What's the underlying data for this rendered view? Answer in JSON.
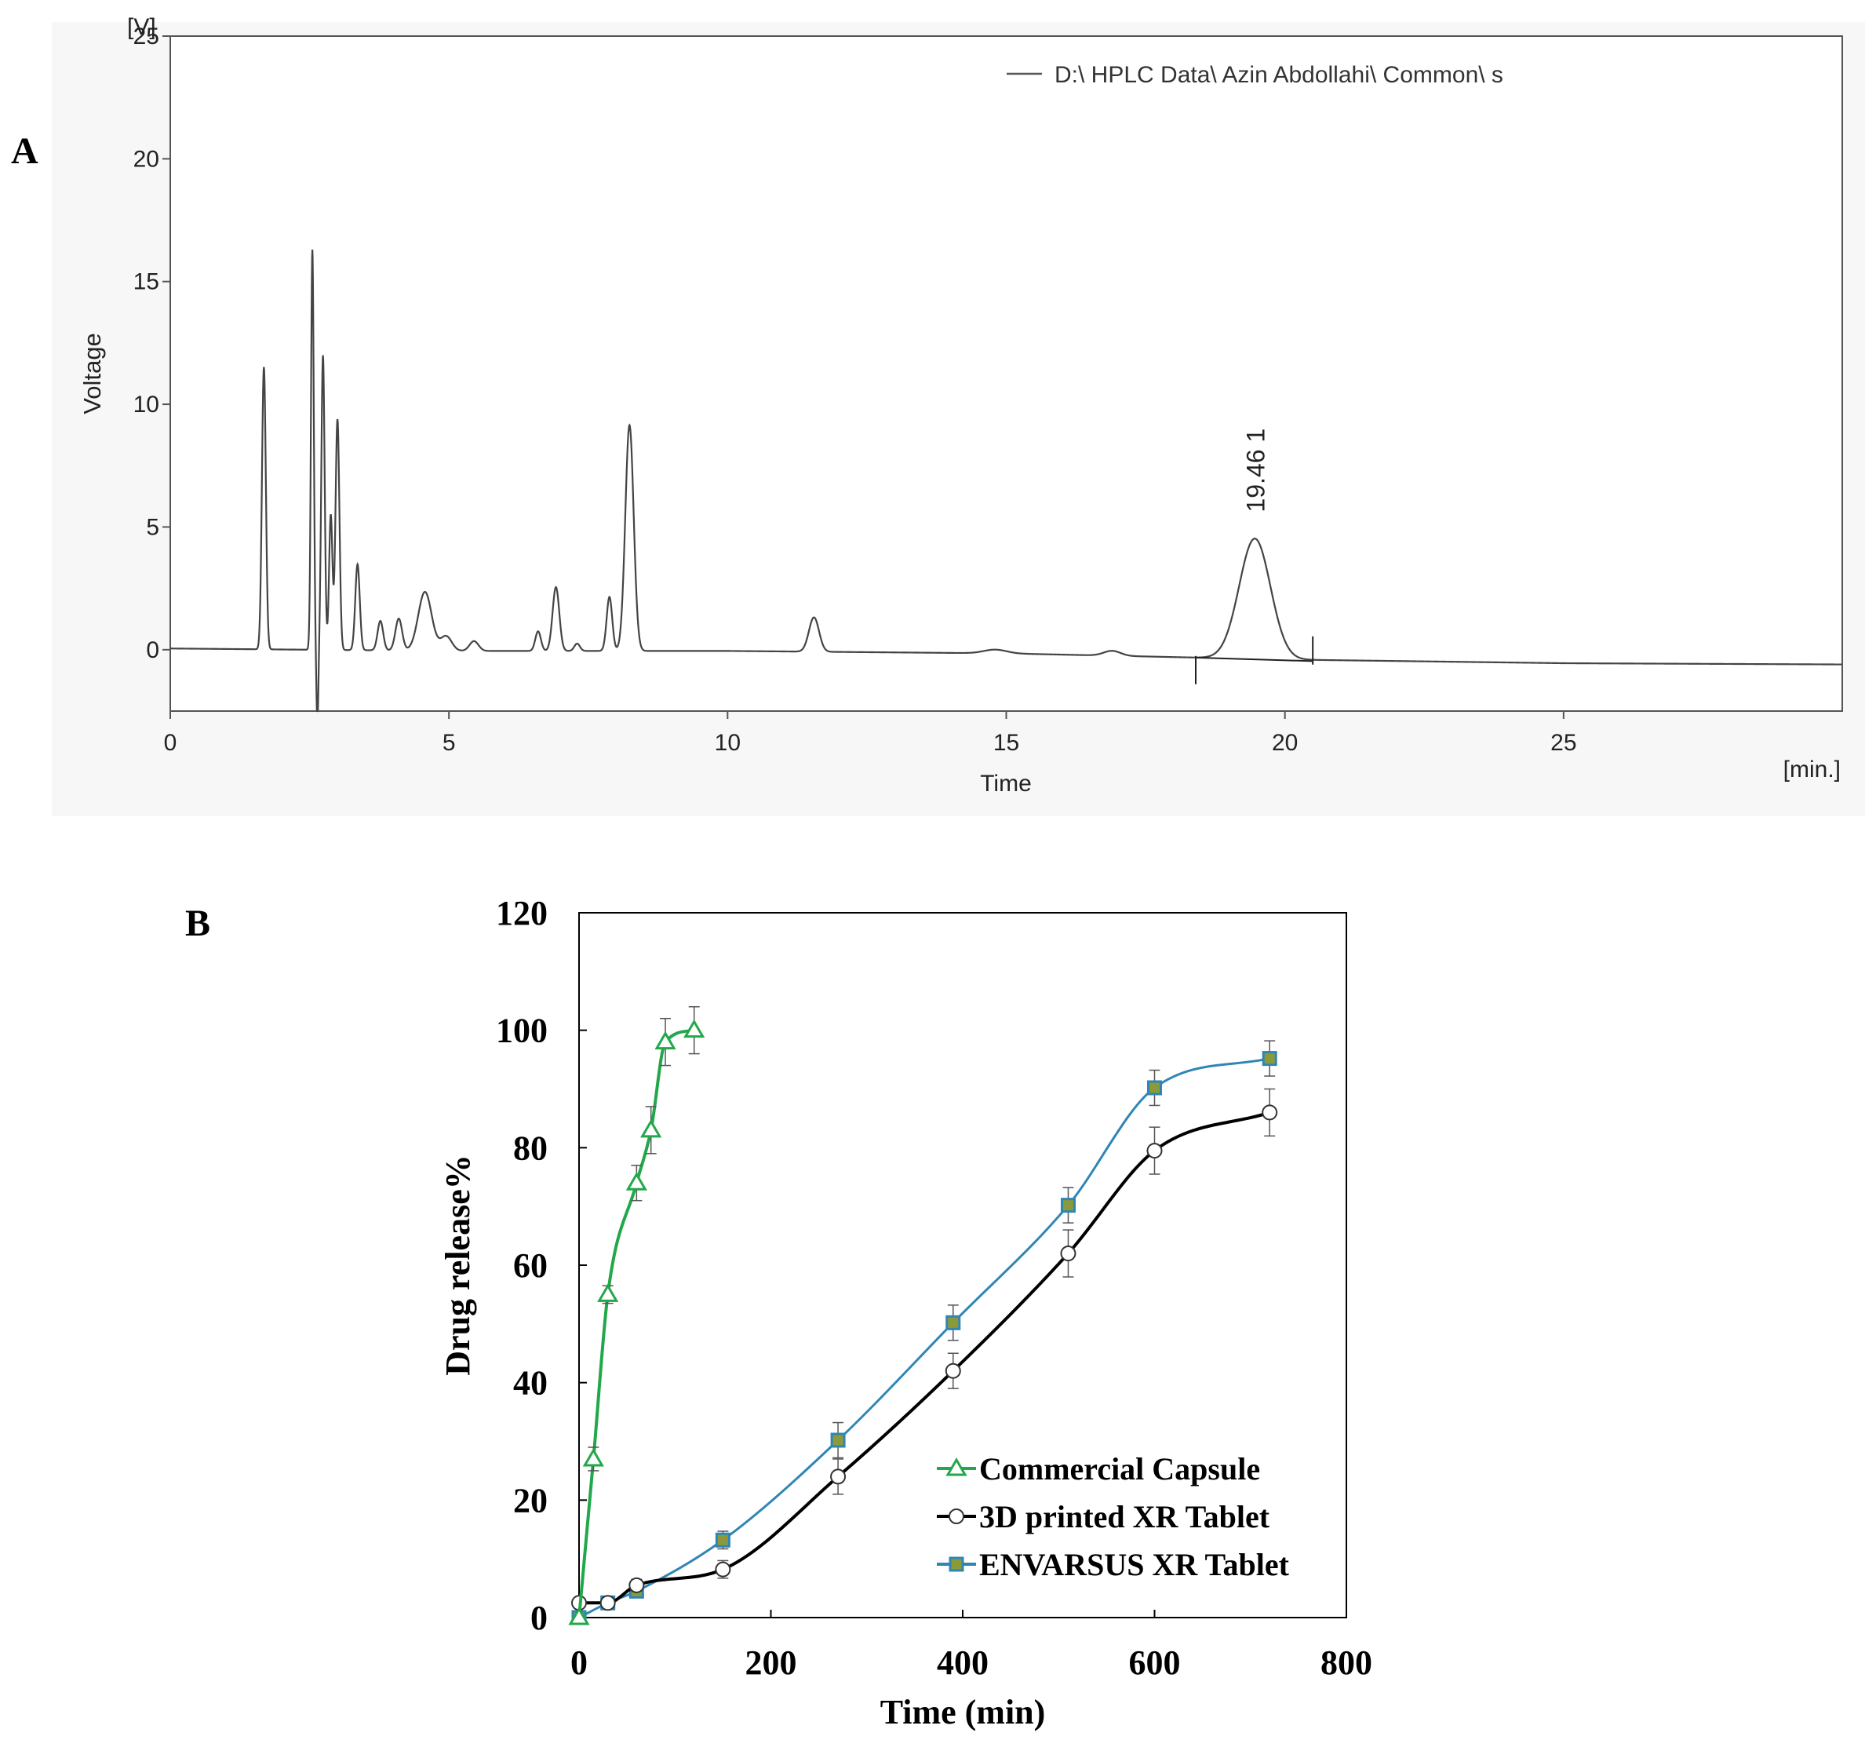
{
  "panel_a_letter": "A",
  "panel_b_letter": "B",
  "chart_data": [
    {
      "id": "A",
      "type": "line",
      "title": "",
      "xlabel": "Time",
      "x_unit": "[min.]",
      "ylabel": "Voltage",
      "y_unit": "[V]",
      "xlim": [
        0,
        30
      ],
      "ylim": [
        -2.5,
        25
      ],
      "xticks": [
        "0",
        "5",
        "10",
        "15",
        "20",
        "25"
      ],
      "xtick_values": [
        0,
        5,
        10,
        15,
        20,
        25
      ],
      "yticks": [
        "0",
        "5",
        "10",
        "15",
        "20",
        "25"
      ],
      "ytick_values": [
        0,
        5,
        10,
        15,
        20,
        25
      ],
      "grid": false,
      "legend": [
        "D:\\ HPLC Data\\ Azin Abdollahi\\ Common\\ s"
      ],
      "legend_position": "top-right",
      "peak_annotation": "19.46  1",
      "integration_markers": [
        18.4,
        20.5
      ],
      "series": [
        {
          "name": "D:\\ HPLC Data\\ Azin Abdollahi\\ Common\\ s",
          "baseline": [
            [
              0,
              0.05
            ],
            [
              5,
              -0.05
            ],
            [
              10,
              -0.05
            ],
            [
              15,
              -0.15
            ],
            [
              20,
              -0.4
            ],
            [
              25,
              -0.55
            ],
            [
              30,
              -0.6
            ]
          ],
          "peaks": [
            {
              "t": 1.68,
              "h": 11.5,
              "w": 0.035
            },
            {
              "t": 2.55,
              "h": 16.3,
              "w": 0.025
            },
            {
              "t": 2.74,
              "h": 12.0,
              "w": 0.03
            },
            {
              "t": 2.88,
              "h": 5.5,
              "w": 0.03
            },
            {
              "t": 3.0,
              "h": 9.4,
              "w": 0.035
            },
            {
              "t": 3.36,
              "h": 3.5,
              "w": 0.04
            },
            {
              "t": 3.77,
              "h": 1.2,
              "w": 0.05
            },
            {
              "t": 4.1,
              "h": 1.3,
              "w": 0.06
            },
            {
              "t": 4.57,
              "h": 2.4,
              "w": 0.12
            },
            {
              "t": 4.95,
              "h": 0.6,
              "w": 0.1
            },
            {
              "t": 5.45,
              "h": 0.4,
              "w": 0.08
            },
            {
              "t": 6.6,
              "h": 0.8,
              "w": 0.05
            },
            {
              "t": 6.92,
              "h": 2.6,
              "w": 0.06
            },
            {
              "t": 7.3,
              "h": 0.3,
              "w": 0.05
            },
            {
              "t": 7.88,
              "h": 2.2,
              "w": 0.05
            },
            {
              "t": 8.24,
              "h": 9.2,
              "w": 0.075
            },
            {
              "t": 11.55,
              "h": 1.4,
              "w": 0.09
            },
            {
              "t": 14.8,
              "h": 0.15,
              "w": 0.2
            },
            {
              "t": 16.9,
              "h": 0.2,
              "w": 0.15
            },
            {
              "t": 19.46,
              "h": 4.9,
              "w": 0.28
            }
          ],
          "dips": [
            {
              "t": 2.64,
              "h": -3.0,
              "w": 0.018
            }
          ]
        }
      ]
    },
    {
      "id": "B",
      "type": "line",
      "title": "",
      "xlabel": "Time (min)",
      "ylabel": "Drug release%",
      "xlim": [
        0,
        800
      ],
      "ylim": [
        0,
        120
      ],
      "xticks": [
        "0",
        "200",
        "400",
        "600",
        "800"
      ],
      "xtick_values": [
        0,
        200,
        400,
        600,
        800
      ],
      "yticks": [
        "0",
        "20",
        "40",
        "60",
        "80",
        "100",
        "120"
      ],
      "ytick_values": [
        0,
        20,
        40,
        60,
        80,
        100,
        120
      ],
      "grid": false,
      "legend_position": "bottom-right",
      "series": [
        {
          "name": "Commercial Capsule",
          "marker": "triangle",
          "color": "#22a84a",
          "x": [
            0,
            15,
            30,
            60,
            75,
            90,
            120
          ],
          "y": [
            0,
            27,
            55,
            74,
            83,
            98,
            100
          ],
          "err": [
            0,
            2,
            1.5,
            3,
            4,
            4,
            4
          ]
        },
        {
          "name": "3D printed XR Tablet",
          "marker": "circle",
          "color": "#000000",
          "x": [
            0,
            30,
            60,
            150,
            270,
            390,
            510,
            600,
            720
          ],
          "y": [
            2.5,
            2.5,
            5.5,
            8.2,
            24,
            42,
            62,
            79.5,
            86
          ],
          "err": [
            0,
            0.5,
            1,
            1.5,
            3,
            3,
            4,
            4,
            4
          ]
        },
        {
          "name": "ENVARSUS XR Tablet",
          "marker": "square",
          "color": "#2f86b5",
          "x": [
            0,
            30,
            60,
            150,
            270,
            390,
            510,
            600,
            720
          ],
          "y": [
            0,
            2.5,
            4.5,
            13.2,
            30.2,
            50.2,
            70.2,
            90.2,
            95.2
          ],
          "err": [
            0,
            0.5,
            1,
            1.5,
            3,
            3,
            3,
            3,
            3
          ]
        }
      ]
    }
  ]
}
